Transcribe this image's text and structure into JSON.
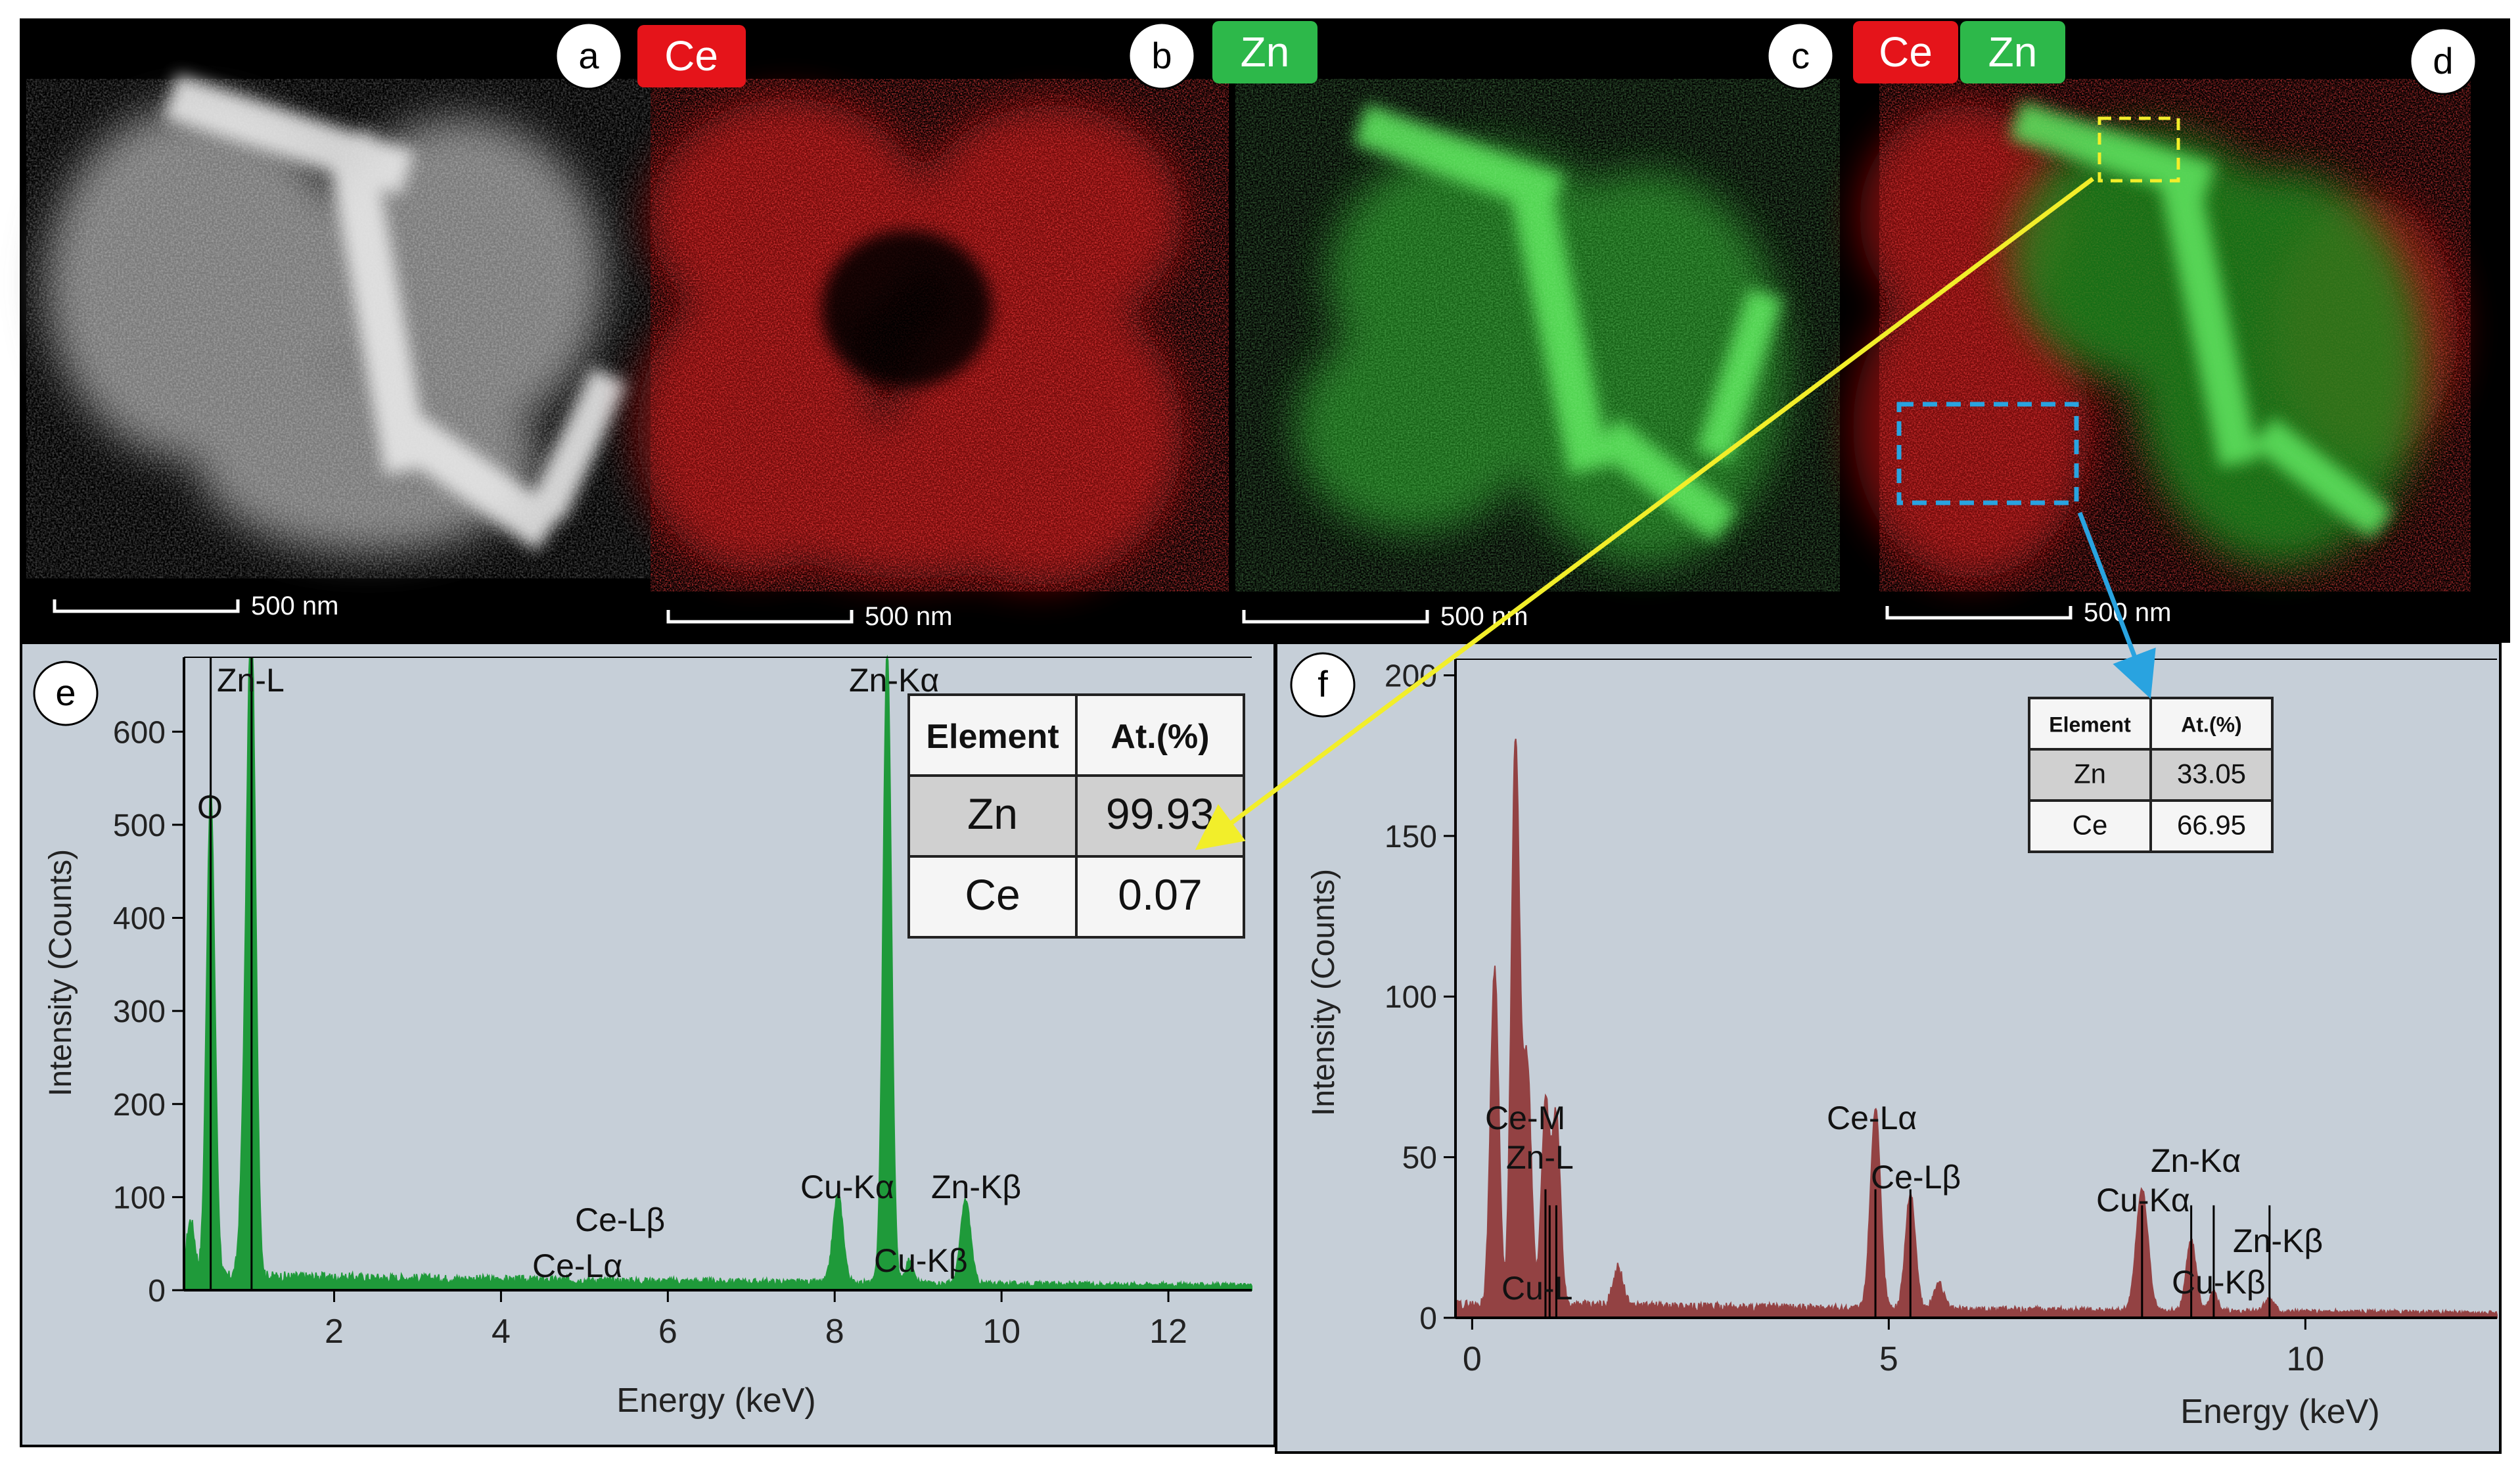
{
  "panels": {
    "a": {
      "letter": "a",
      "scale_text": "500 nm"
    },
    "b": {
      "letter": "b",
      "element_tag": "Ce",
      "scale_text": "500 nm"
    },
    "c": {
      "letter": "c",
      "element_tag": "Zn",
      "scale_text": "500 nm"
    },
    "d": {
      "letter": "d",
      "element_tags": [
        "Ce",
        "Zn"
      ],
      "scale_text": "500 nm"
    },
    "e": {
      "letter": "e"
    },
    "f": {
      "letter": "f"
    }
  },
  "colors": {
    "ce_tag": "#e5141a",
    "zn_tag": "#2db84a",
    "ce_map": "#d01818",
    "zn_map": "#3ccf3c",
    "spectrum_e": "#1f9a3a",
    "spectrum_f": "#8b2a2a",
    "plot_bg": "#c6cfd8",
    "arrow_yellow": "#f2ee2a",
    "arrow_blue": "#29a3e0"
  },
  "chart_data": [
    {
      "id": "e",
      "type": "area",
      "xlabel": "Energy (keV)",
      "ylabel": "Intensity (Counts)",
      "xlim": [
        0.2,
        13
      ],
      "ylim": [
        0,
        680
      ],
      "xticks": [
        2,
        4,
        6,
        8,
        10,
        12
      ],
      "yticks": [
        0,
        100,
        200,
        300,
        400,
        500,
        600
      ],
      "peaks": [
        {
          "x": 0.28,
          "y": 60,
          "w": 0.05
        },
        {
          "x": 0.52,
          "y": 520,
          "w": 0.05
        },
        {
          "x": 1.01,
          "y": 680,
          "w": 0.05
        },
        {
          "x": 0.93,
          "y": 150,
          "w": 0.05
        },
        {
          "x": 8.04,
          "y": 95,
          "w": 0.06
        },
        {
          "x": 8.63,
          "y": 680,
          "w": 0.05
        },
        {
          "x": 8.9,
          "y": 25,
          "w": 0.05
        },
        {
          "x": 9.57,
          "y": 90,
          "w": 0.06
        }
      ],
      "background": 15,
      "line_markers": [
        {
          "label": "O",
          "x": 0.52
        },
        {
          "label": "Zn-L",
          "x": 1.01
        },
        {
          "label": "Ce-Lα",
          "x": 4.84
        },
        {
          "label": "Ce-Lβ",
          "x": 5.26
        },
        {
          "label": "Cu-Kα",
          "x": 8.04
        },
        {
          "label": "Zn-Kα",
          "x": 8.63
        },
        {
          "label": "Cu-Kβ",
          "x": 8.9
        },
        {
          "label": "Zn-Kβ",
          "x": 9.57
        }
      ],
      "table": {
        "headers": [
          "Element",
          "At.(%)"
        ],
        "rows": [
          [
            "Zn",
            "99.93"
          ],
          [
            "Ce",
            "0.07"
          ]
        ]
      }
    },
    {
      "id": "f",
      "type": "area",
      "xlabel": "Energy (keV)",
      "ylabel": "Intensity (Counts)",
      "xlim": [
        -0.2,
        12.3
      ],
      "ylim": [
        0,
        205
      ],
      "xticks": [
        0,
        5,
        10
      ],
      "yticks": [
        0,
        50,
        100,
        150,
        200
      ],
      "peaks": [
        {
          "x": 0.27,
          "y": 105,
          "w": 0.05
        },
        {
          "x": 0.52,
          "y": 175,
          "w": 0.05
        },
        {
          "x": 0.66,
          "y": 75,
          "w": 0.05
        },
        {
          "x": 0.88,
          "y": 62,
          "w": 0.05
        },
        {
          "x": 1.01,
          "y": 58,
          "w": 0.05
        },
        {
          "x": 1.75,
          "y": 12,
          "w": 0.06
        },
        {
          "x": 4.84,
          "y": 62,
          "w": 0.06
        },
        {
          "x": 5.26,
          "y": 36,
          "w": 0.06
        },
        {
          "x": 5.6,
          "y": 8,
          "w": 0.06
        },
        {
          "x": 8.04,
          "y": 38,
          "w": 0.07
        },
        {
          "x": 8.63,
          "y": 22,
          "w": 0.06
        },
        {
          "x": 8.9,
          "y": 6,
          "w": 0.05
        },
        {
          "x": 9.57,
          "y": 4,
          "w": 0.06
        }
      ],
      "background": 4,
      "line_markers": [
        {
          "label": "Ce-M",
          "x": 0.88
        },
        {
          "label": "Zn-L",
          "x": 1.01
        },
        {
          "label": "Cu-L",
          "x": 0.93
        },
        {
          "label": "Ce-Lα",
          "x": 4.84
        },
        {
          "label": "Ce-Lβ",
          "x": 5.26
        },
        {
          "label": "Cu-Kα",
          "x": 8.04
        },
        {
          "label": "Zn-Kα",
          "x": 8.63
        },
        {
          "label": "Cu-Kβ",
          "x": 8.9
        },
        {
          "label": "Zn-Kβ",
          "x": 9.57
        }
      ],
      "table": {
        "headers": [
          "Element",
          "At.(%)"
        ],
        "rows": [
          [
            "Zn",
            "33.05"
          ],
          [
            "Ce",
            "66.95"
          ]
        ]
      }
    }
  ]
}
